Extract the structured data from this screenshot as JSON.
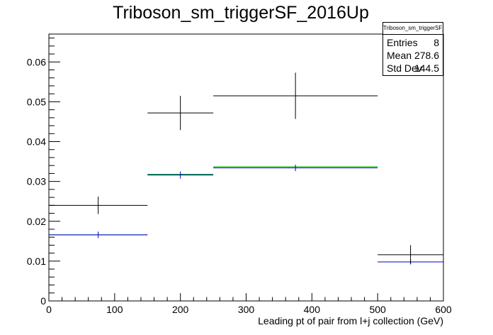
{
  "chart_data": {
    "type": "histogram",
    "title": "Triboson_sm_triggerSF_2016Up",
    "xlabel": "Leading pt of pair from l+j collection (GeV)",
    "ylabel": "",
    "xlim": [
      0,
      600
    ],
    "ylim": [
      0,
      0.067
    ],
    "x_ticks": [
      0,
      100,
      200,
      300,
      400,
      500,
      600
    ],
    "x_tick_labels": [
      "0",
      "100",
      "200",
      "300",
      "400",
      "500",
      "600"
    ],
    "y_ticks": [
      0,
      0.01,
      0.02,
      0.03,
      0.04,
      0.05,
      0.06
    ],
    "y_tick_labels": [
      "0",
      "0.01",
      "0.02",
      "0.03",
      "0.04",
      "0.05",
      "0.06"
    ],
    "bins": [
      [
        0,
        150
      ],
      [
        150,
        250
      ],
      [
        250,
        500
      ],
      [
        500,
        600
      ]
    ],
    "series": [
      {
        "color": "#000000",
        "style": "errorbar",
        "values": [
          0.024,
          0.0472,
          0.0515,
          0.0116
        ],
        "errors": [
          0.0022,
          0.0043,
          0.0058,
          0.0024
        ]
      },
      {
        "color": "#0000cc",
        "style": "errorbar",
        "values": [
          0.0166,
          0.0316,
          0.0334,
          0.0098
        ],
        "errors": [
          0.0008,
          0.0009,
          0.0008,
          0.0006
        ]
      },
      {
        "color": "#00aa00",
        "style": "hist",
        "values": [
          0.0166,
          0.0318,
          0.0337,
          0.0098
        ]
      }
    ],
    "grid": false
  },
  "stats": {
    "name": "Triboson_sm_triggerSF_2016Up",
    "entries_label": "Entries",
    "entries_value": "8",
    "mean_label": "Mean",
    "mean_value": "278.6",
    "stddev_label": "Std Dev",
    "stddev_value": "144.5"
  }
}
